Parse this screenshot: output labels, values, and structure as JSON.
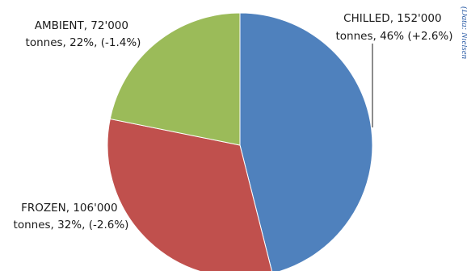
{
  "chart_data": {
    "type": "pie",
    "start_angle_deg": 0,
    "direction": "clockwise",
    "slices": [
      {
        "category": "CHILLED",
        "value": 152000,
        "share_pct": 46,
        "change_pct": 2.6,
        "color": "#4f81bd",
        "label_line1": "CHILLED, 152'000",
        "label_line2": "tonnes, 46% (+2.6%)"
      },
      {
        "category": "FROZEN",
        "value": 106000,
        "share_pct": 32,
        "change_pct": -2.6,
        "color": "#c0504d",
        "label_line1": "FROZEN, 106'000",
        "label_line2": "tonnes, 32%, (-2.6%)"
      },
      {
        "category": "AMBIENT",
        "value": 72000,
        "share_pct": 22,
        "change_pct": -1.4,
        "color": "#9bbb59",
        "label_line1": "AMBIENT, 72'000",
        "label_line2": "tonnes, 22%, (-1.4%)"
      }
    ],
    "side_note": "(Data: Nielsen"
  }
}
